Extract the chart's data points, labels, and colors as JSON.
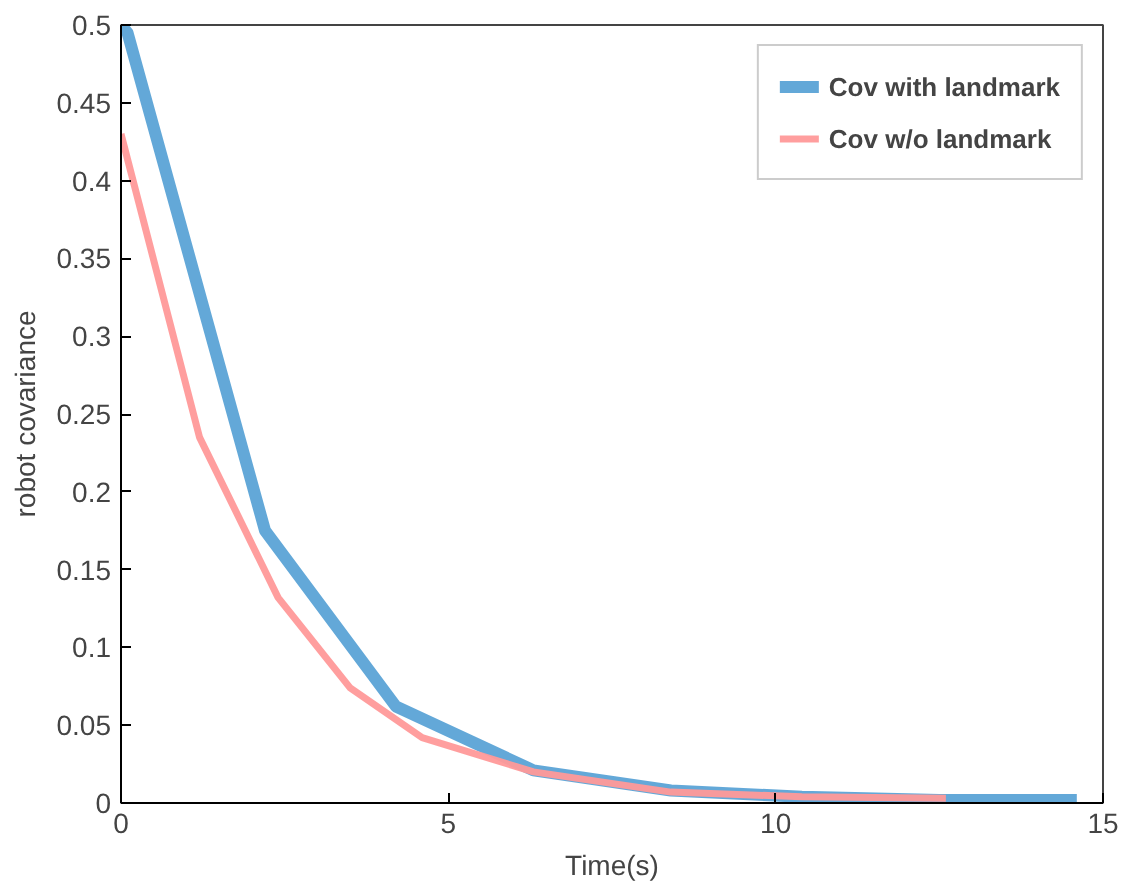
{
  "chart_data": {
    "type": "line",
    "xlabel": "Time(s)",
    "ylabel": "robot covariance",
    "xlim": [
      0,
      15
    ],
    "ylim": [
      0,
      0.5
    ],
    "xticks": [
      0,
      5,
      10,
      15
    ],
    "yticks": [
      0,
      0.05,
      0.1,
      0.15,
      0.2,
      0.25,
      0.3,
      0.35,
      0.4,
      0.45,
      0.5
    ],
    "grid": false,
    "legend": "top right",
    "line_style": "solid",
    "series": [
      {
        "name": "Cov with landmark",
        "color": "#5ba3d6",
        "x": [
          0,
          0.1,
          2.2,
          4.2,
          6.3,
          8.4,
          10.4,
          12.5,
          14.6
        ],
        "values": [
          0.5,
          0.495,
          0.175,
          0.062,
          0.021,
          0.008,
          0.004,
          0.002,
          0.002
        ]
      },
      {
        "name": "Cov w/o landmark",
        "color": "#ff9999",
        "x": [
          0,
          1.2,
          2.4,
          3.5,
          4.6,
          6.3,
          8.4,
          10.4,
          12.6
        ],
        "values": [
          0.43,
          0.235,
          0.132,
          0.074,
          0.042,
          0.02,
          0.007,
          0.004,
          0.003
        ]
      }
    ]
  }
}
